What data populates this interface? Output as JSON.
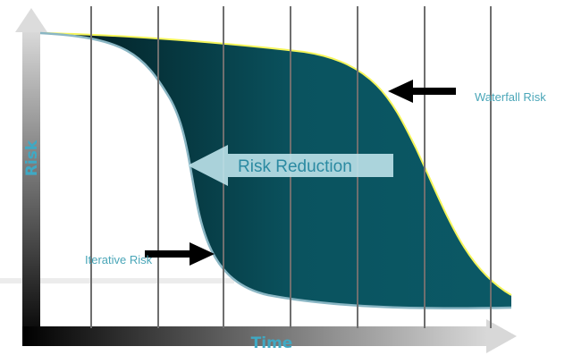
{
  "labels": {
    "waterfall": "Waterfall Risk",
    "iterative": "Iterative Risk",
    "reduction": "Risk Reduction",
    "x_axis": "Time",
    "y_axis": "Risk"
  },
  "colors": {
    "band_dark": "#02191d",
    "band_light": "#0a535f",
    "curve_outline": "#8ab6c4",
    "waterfall_edge": "#f5f55a",
    "grid": "#6f6f6f",
    "arrow": "#000000",
    "reduction_arrow": "#bde2ea",
    "label": "#4aa6b8",
    "axis_label": "#3fa9c4"
  },
  "gridline_count": 7
}
